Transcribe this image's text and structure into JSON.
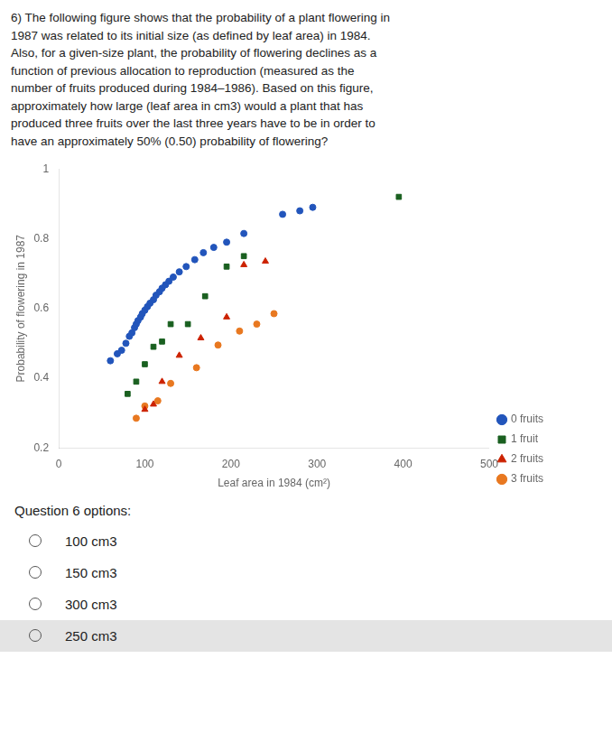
{
  "chart_data": {
    "type": "scatter",
    "title": "6) The following figure shows that the probability of a plant flowering in\n1987 was related to its initial size (as defined by leaf area) in 1984.\nAlso, for a given-size plant, the probability of flowering declines as a\nfunction of previous allocation to reproduction (measured as the\nnumber of fruits produced during 1984–1986). Based on this figure,\napproximately how large (leaf area in cm3) would a plant that has\nproduced three fruits over the last three years have to be in order to\nhave an approximately 50% (0.50) probability of flowering?",
    "xlabel": "Leaf area in 1984 (cm²)",
    "ylabel": "Probability of flowering in 1987",
    "xlim": [
      0,
      500
    ],
    "ylim": [
      0.2,
      1.0
    ],
    "xticks": [
      0,
      100,
      200,
      300,
      400,
      500
    ],
    "yticks": [
      0.2,
      0.4,
      0.6,
      0.8,
      1.0
    ],
    "grid": false,
    "legend": "lower right",
    "series": [
      {
        "name": "0 fruits",
        "color": "#2255bb",
        "marker": "circle",
        "x": [
          60,
          68,
          73,
          78,
          82,
          85,
          88,
          90,
          92,
          95,
          97,
          100,
          103,
          106,
          110,
          113,
          117,
          120,
          124,
          128,
          133,
          140,
          148,
          158,
          168,
          180,
          195,
          215,
          260,
          280,
          295
        ],
        "values": [
          0.45,
          0.47,
          0.48,
          0.5,
          0.52,
          0.53,
          0.545,
          0.555,
          0.565,
          0.575,
          0.585,
          0.595,
          0.605,
          0.615,
          0.625,
          0.638,
          0.648,
          0.658,
          0.668,
          0.678,
          0.69,
          0.705,
          0.72,
          0.74,
          0.76,
          0.775,
          0.79,
          0.815,
          0.87,
          0.88,
          0.89
        ]
      },
      {
        "name": "1 fruit",
        "color": "#1a6020",
        "marker": "square",
        "x": [
          80,
          90,
          100,
          110,
          120,
          130,
          150,
          170,
          195,
          215,
          395
        ],
        "values": [
          0.355,
          0.39,
          0.44,
          0.49,
          0.505,
          0.555,
          0.555,
          0.635,
          0.72,
          0.75,
          0.92
        ]
      },
      {
        "name": "2 fruits",
        "color": "#cc2200",
        "marker": "triangle",
        "x": [
          100,
          110,
          120,
          140,
          165,
          195,
          215,
          240
        ],
        "values": [
          0.31,
          0.325,
          0.39,
          0.465,
          0.515,
          0.575,
          0.725,
          0.735
        ]
      },
      {
        "name": "3 fruits",
        "color": "#e87820",
        "marker": "circle",
        "x": [
          90,
          100,
          115,
          130,
          160,
          185,
          210,
          230,
          250
        ],
        "values": [
          0.285,
          0.32,
          0.335,
          0.385,
          0.43,
          0.495,
          0.535,
          0.555,
          0.585
        ]
      }
    ],
    "annotations": [
      "Question 6 options:",
      "100 cm3",
      "150 cm3",
      "300 cm3",
      "250 cm3"
    ]
  }
}
